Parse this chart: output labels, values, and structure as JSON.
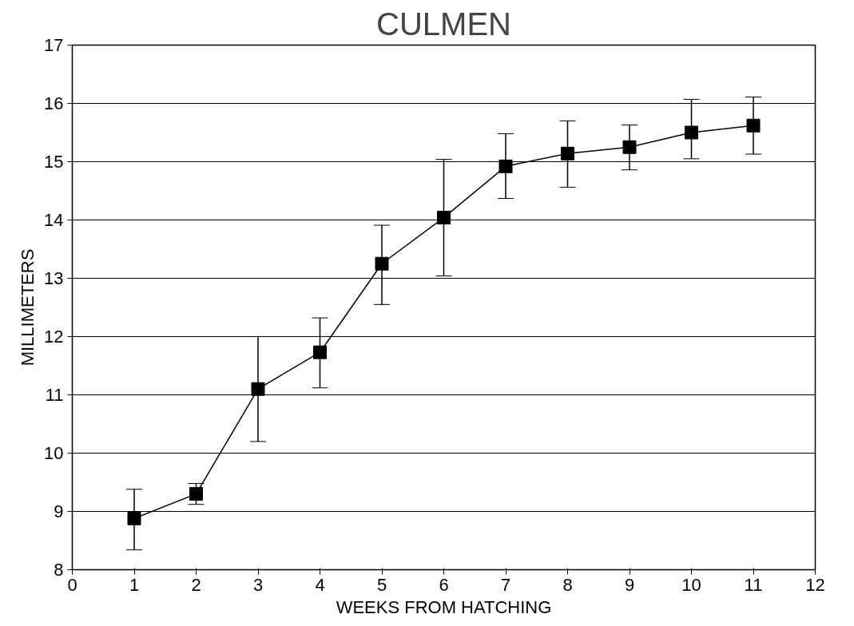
{
  "chart_data": {
    "type": "line",
    "title": "CULMEN",
    "xlabel": "WEEKS FROM HATCHING",
    "ylabel": "MILLIMETERS",
    "x": [
      1,
      2,
      3,
      4,
      5,
      6,
      7,
      8,
      9,
      10,
      11
    ],
    "series": [
      {
        "color": "#000000",
        "values": [
          8.88,
          9.3,
          11.1,
          11.73,
          13.25,
          14.04,
          14.92,
          15.14,
          15.25,
          15.5,
          15.62
        ],
        "errors": [
          [
            8.34,
            9.38
          ],
          [
            9.12,
            9.48
          ],
          [
            10.2,
            12.0
          ],
          [
            11.12,
            12.32
          ],
          [
            12.55,
            13.91
          ],
          [
            13.04,
            15.04
          ],
          [
            14.37,
            15.48
          ],
          [
            14.56,
            15.7
          ],
          [
            14.86,
            15.63
          ],
          [
            15.05,
            16.07
          ],
          [
            15.13,
            16.11
          ]
        ]
      }
    ],
    "xlim": [
      0,
      12
    ],
    "xticks": [
      0,
      1,
      2,
      3,
      4,
      5,
      6,
      7,
      8,
      9,
      10,
      11,
      12
    ],
    "ylim": [
      8,
      17
    ],
    "yticks": [
      8,
      9,
      10,
      11,
      12,
      13,
      14,
      15,
      16,
      17
    ],
    "grid": "y",
    "marker": "square",
    "line_style": "solid"
  }
}
